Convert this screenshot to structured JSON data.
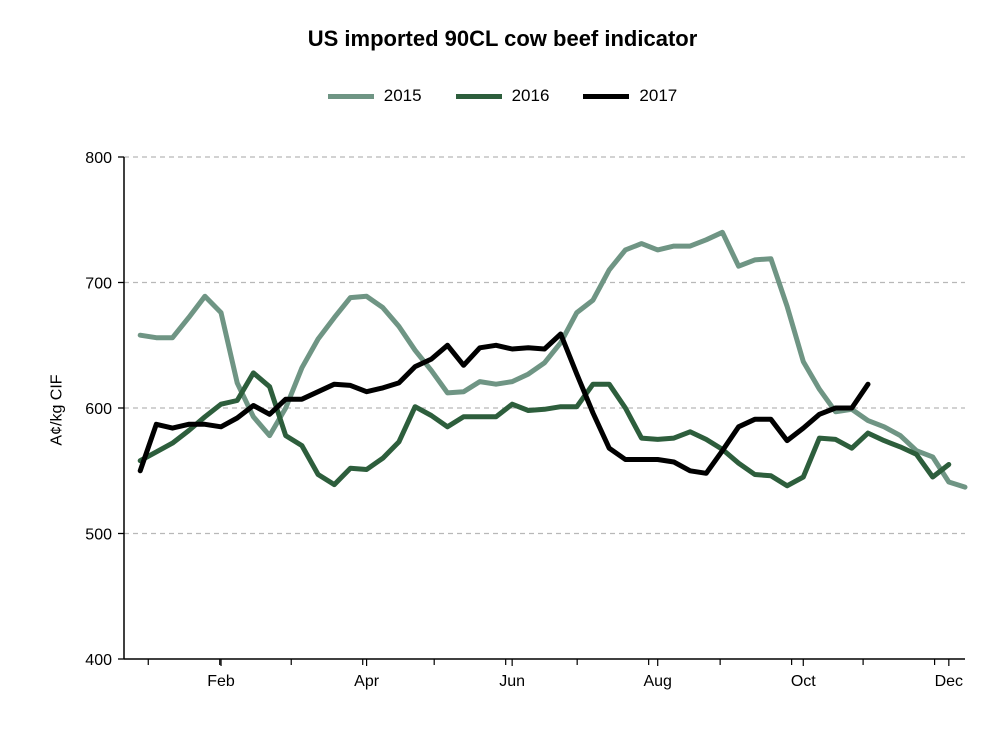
{
  "chart_data": {
    "type": "line",
    "title": "US imported 90CL cow beef indicator",
    "ylabel": "A¢/kg CIF",
    "xlabel": "",
    "ylim": [
      400,
      800
    ],
    "yticks": [
      "400",
      "500",
      "600",
      "700",
      "800"
    ],
    "xlim": [
      1,
      53
    ],
    "xticks": [
      {
        "label": "Feb",
        "week": 7
      },
      {
        "label": "Apr",
        "week": 16
      },
      {
        "label": "Jun",
        "week": 25
      },
      {
        "label": "Aug",
        "week": 34
      },
      {
        "label": "Oct",
        "week": 43
      },
      {
        "label": "Dec",
        "week": 52
      }
    ],
    "grid": "horizontal-dashed",
    "legend_position": "top-center",
    "series": [
      {
        "name": "2015",
        "color": "#6f9584",
        "weeks": [
          2,
          3,
          4,
          5,
          6,
          7,
          8,
          9,
          10,
          11,
          12,
          13,
          14,
          15,
          16,
          17,
          18,
          19,
          20,
          21,
          22,
          23,
          24,
          25,
          26,
          27,
          28,
          29,
          30,
          31,
          32,
          33,
          34,
          35,
          36,
          37,
          38,
          39,
          40,
          41,
          42,
          43,
          44,
          45,
          46,
          47,
          48,
          49,
          50,
          51,
          52,
          53
        ],
        "values": [
          658,
          656,
          656,
          672,
          689,
          676,
          620,
          593,
          578,
          600,
          632,
          655,
          672,
          688,
          689,
          680,
          665,
          646,
          630,
          612,
          613,
          621,
          619,
          621,
          627,
          636,
          652,
          676,
          686,
          710,
          726,
          731,
          726,
          729,
          729,
          734,
          740,
          713,
          718,
          719,
          681,
          637,
          615,
          597,
          599,
          590,
          585,
          578,
          566,
          561,
          541,
          537
        ]
      },
      {
        "name": "2016",
        "color": "#2d5e3c",
        "weeks": [
          2,
          3,
          4,
          5,
          6,
          7,
          8,
          9,
          10,
          11,
          12,
          13,
          14,
          15,
          16,
          17,
          18,
          19,
          20,
          21,
          22,
          23,
          24,
          25,
          26,
          27,
          28,
          29,
          30,
          31,
          32,
          33,
          34,
          35,
          36,
          37,
          38,
          39,
          40,
          41,
          42,
          43,
          44,
          45,
          46,
          47,
          48,
          49,
          50,
          51,
          52
        ],
        "values": [
          558,
          565,
          572,
          582,
          593,
          603,
          606,
          628,
          617,
          578,
          570,
          547,
          539,
          552,
          551,
          560,
          573,
          601,
          594,
          585,
          593,
          593,
          593,
          603,
          598,
          599,
          601,
          601,
          619,
          619,
          600,
          576,
          575,
          576,
          581,
          575,
          567,
          556,
          547,
          546,
          538,
          545,
          576,
          575,
          568,
          580,
          574,
          569,
          563,
          545,
          555
        ]
      },
      {
        "name": "2017",
        "color": "#000000",
        "weeks": [
          2,
          3,
          4,
          5,
          6,
          7,
          8,
          9,
          10,
          11,
          12,
          13,
          14,
          15,
          16,
          17,
          18,
          19,
          20,
          21,
          22,
          23,
          24,
          25,
          26,
          27,
          28,
          29,
          30,
          31,
          32,
          33,
          34,
          35,
          36,
          37,
          38,
          39,
          40,
          41,
          42,
          43,
          44,
          45,
          46,
          47
        ],
        "values": [
          550,
          587,
          584,
          587,
          587,
          585,
          592,
          602,
          595,
          607,
          607,
          613,
          619,
          618,
          613,
          616,
          620,
          633,
          639,
          650,
          634,
          648,
          650,
          647,
          648,
          647,
          659,
          627,
          596,
          568,
          559,
          559,
          559,
          557,
          550,
          548,
          566,
          585,
          591,
          591,
          574,
          584,
          595,
          600,
          600,
          619
        ]
      }
    ]
  }
}
